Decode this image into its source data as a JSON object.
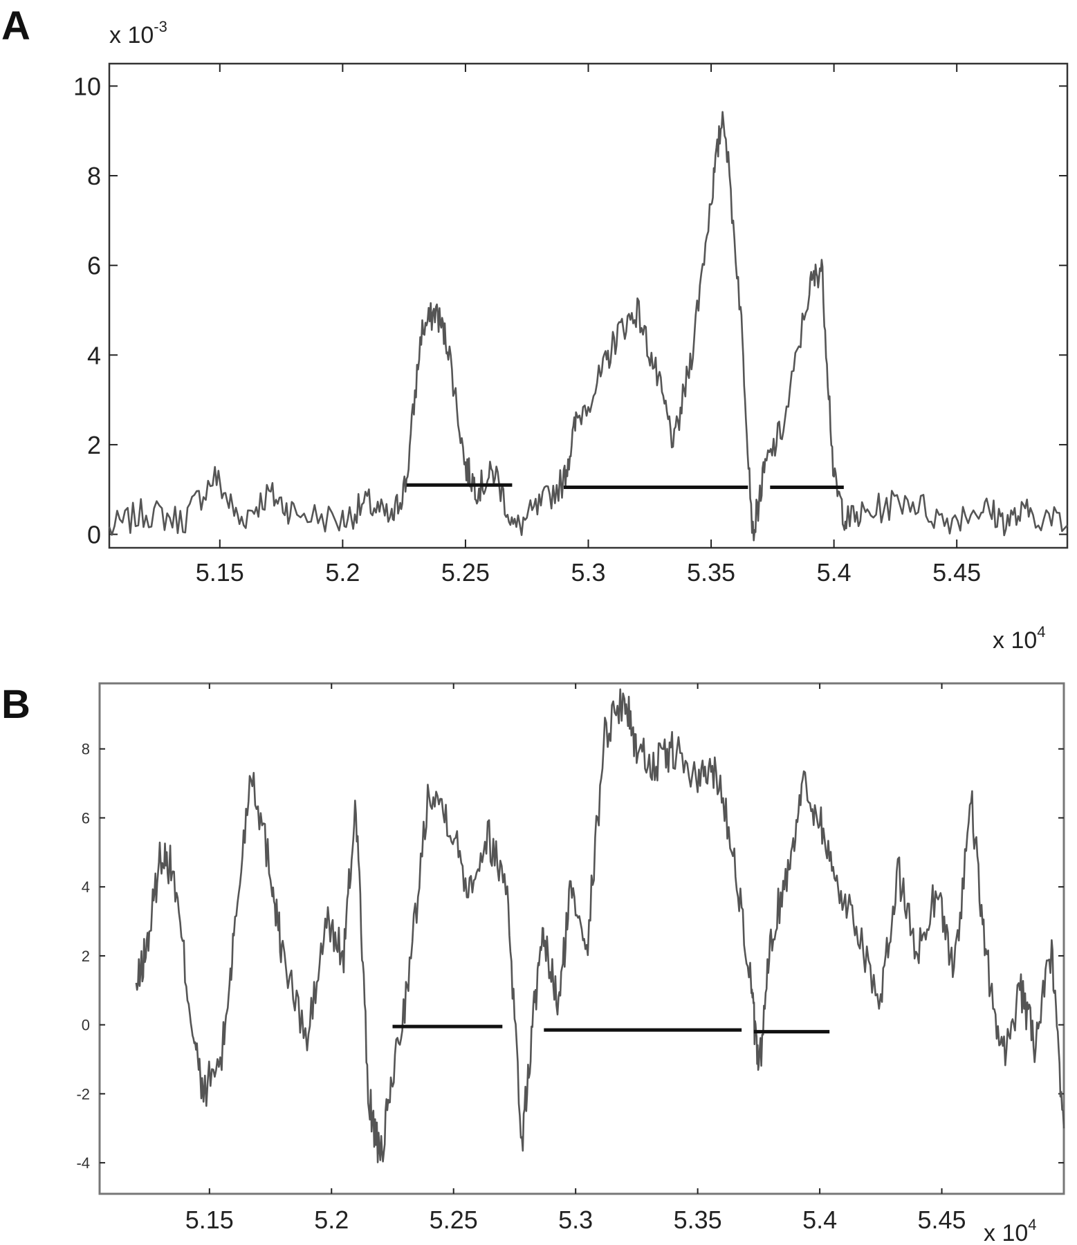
{
  "figure": {
    "panels": [
      "A",
      "B"
    ]
  },
  "chart_data": [
    {
      "panel": "A",
      "type": "line",
      "title": "",
      "xlabel": "",
      "ylabel": "",
      "x_multiplier": "x 10",
      "x_multiplier_exp": "4",
      "y_multiplier": "x 10",
      "y_multiplier_exp": "-3",
      "xlim": [
        5.105,
        5.495
      ],
      "ylim": [
        -0.3,
        10.5
      ],
      "xticks": [
        5.15,
        5.2,
        5.25,
        5.3,
        5.35,
        5.4,
        5.45
      ],
      "xtick_labels": [
        "5.15",
        "5.2",
        "5.25",
        "5.3",
        "5.35",
        "5.4",
        "5.45"
      ],
      "yticks": [
        0,
        2,
        4,
        6,
        8,
        10
      ],
      "ytick_labels": [
        "0",
        "2",
        "4",
        "6",
        "8",
        "10"
      ],
      "grid": false,
      "series": [
        {
          "x": [
            5.105,
            5.12,
            5.135,
            5.148,
            5.158,
            5.17,
            5.18,
            5.2,
            5.21,
            5.22,
            5.226,
            5.232,
            5.238,
            5.243,
            5.25,
            5.255,
            5.262,
            5.27,
            5.28,
            5.29,
            5.295,
            5.305,
            5.312,
            5.32,
            5.328,
            5.335,
            5.342,
            5.35,
            5.355,
            5.362,
            5.367,
            5.372,
            5.38,
            5.39,
            5.395,
            5.4,
            5.405,
            5.415,
            5.43,
            5.445,
            5.46,
            5.47,
            5.48,
            5.495
          ],
          "y": [
            0.1,
            0.5,
            0.3,
            1.3,
            0.3,
            0.9,
            0.5,
            0.3,
            0.7,
            0.3,
            1.2,
            4.5,
            5.0,
            4.2,
            1.5,
            1.0,
            1.4,
            0.1,
            0.6,
            1.2,
            2.5,
            3.5,
            4.5,
            5.0,
            3.5,
            2.0,
            4.0,
            7.5,
            9.5,
            5.0,
            0.0,
            1.5,
            2.5,
            5.5,
            6.0,
            1.2,
            0.3,
            0.5,
            0.8,
            0.3,
            0.6,
            0.3,
            0.5,
            0.2
          ]
        }
      ],
      "segments": [
        {
          "x_start": 5.226,
          "x_end": 5.269,
          "y": 1.1
        },
        {
          "x_start": 5.29,
          "x_end": 5.365,
          "y": 1.05
        },
        {
          "x_start": 5.374,
          "x_end": 5.404,
          "y": 1.05
        }
      ]
    },
    {
      "panel": "B",
      "type": "line",
      "title": "",
      "xlabel": "",
      "ylabel": "",
      "x_multiplier": "x 10",
      "x_multiplier_exp": "4",
      "xlim": [
        5.105,
        5.5
      ],
      "ylim": [
        -4.9,
        9.9
      ],
      "xticks": [
        5.15,
        5.2,
        5.25,
        5.3,
        5.35,
        5.4,
        5.45
      ],
      "xtick_labels": [
        "5.15",
        "5.2",
        "5.25",
        "5.3",
        "5.35",
        "5.4",
        "5.45"
      ],
      "yticks": [
        -4,
        -2,
        0,
        2,
        4,
        6,
        8
      ],
      "ytick_labels": [
        "-4",
        "-2",
        "0",
        "2",
        "4",
        "6",
        "8"
      ],
      "grid": false,
      "series": [
        {
          "x": [
            5.12,
            5.125,
            5.13,
            5.135,
            5.142,
            5.147,
            5.155,
            5.16,
            5.167,
            5.175,
            5.18,
            5.19,
            5.198,
            5.205,
            5.21,
            5.215,
            5.22,
            5.225,
            5.232,
            5.24,
            5.248,
            5.256,
            5.264,
            5.272,
            5.278,
            5.283,
            5.287,
            5.293,
            5.298,
            5.305,
            5.312,
            5.32,
            5.325,
            5.333,
            5.34,
            5.35,
            5.357,
            5.365,
            5.372,
            5.375,
            5.38,
            5.387,
            5.393,
            5.4,
            5.407,
            5.415,
            5.425,
            5.432,
            5.44,
            5.448,
            5.455,
            5.462,
            5.468,
            5.475,
            5.482,
            5.488,
            5.495,
            5.5
          ],
          "y": [
            1.0,
            2.5,
            5.0,
            4.5,
            0.5,
            -2.0,
            -1.0,
            2.5,
            7.5,
            4.5,
            2.0,
            -0.5,
            3.0,
            2.0,
            6.5,
            -2.0,
            -4.0,
            -1.5,
            1.5,
            7.0,
            6.0,
            4.0,
            5.5,
            4.0,
            -3.5,
            0.5,
            2.5,
            0.5,
            4.0,
            2.5,
            8.5,
            9.5,
            8.0,
            7.5,
            8.0,
            7.0,
            7.5,
            5.0,
            1.0,
            -1.5,
            2.5,
            4.5,
            7.0,
            6.0,
            4.0,
            3.0,
            0.5,
            4.5,
            2.0,
            4.0,
            1.5,
            6.5,
            2.0,
            -1.0,
            1.0,
            -0.5,
            2.0,
            -3.0
          ]
        }
      ],
      "segments": [
        {
          "x_start": 5.225,
          "x_end": 5.27,
          "y": -0.05
        },
        {
          "x_start": 5.287,
          "x_end": 5.368,
          "y": -0.15
        },
        {
          "x_start": 5.373,
          "x_end": 5.404,
          "y": -0.2
        }
      ]
    }
  ]
}
